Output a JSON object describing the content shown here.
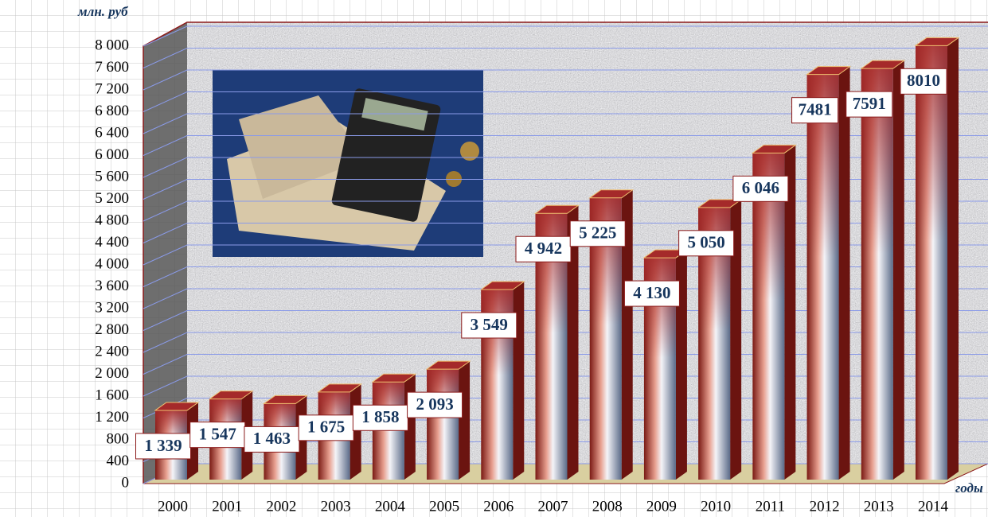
{
  "chart_data": {
    "type": "bar3d",
    "y_axis_label": "млн. руб",
    "x_axis_label": "годы",
    "categories": [
      "2000",
      "2001",
      "2002",
      "2003",
      "2004",
      "2005",
      "2006",
      "2007",
      "2008",
      "2009",
      "2010",
      "2011",
      "2012",
      "2013",
      "2014"
    ],
    "values": [
      1339,
      1547,
      1463,
      1675,
      1858,
      2093,
      3549,
      4942,
      5225,
      4130,
      5050,
      6046,
      7481,
      7591,
      8010
    ],
    "value_labels": [
      "1 339",
      "1 547",
      "1 463",
      "1 675",
      "1 858",
      "2 093",
      "3 549",
      "4 942",
      "5 225",
      "4 130",
      "5 050",
      "6 046",
      "7481",
      "7591",
      "8010"
    ],
    "color": "#a52a2a",
    "ylim": [
      0,
      8000
    ],
    "yticks": [
      0,
      400,
      800,
      {
        "value": 1200,
        "label": "1 200"
      },
      {
        "value": 1600,
        "label": "1 600"
      },
      {
        "value": 2000,
        "label": "2 000"
      },
      {
        "value": 2400,
        "label": "2 400"
      },
      {
        "value": 2800,
        "label": "2 800"
      },
      {
        "value": 3200,
        "label": "3 200"
      },
      {
        "value": 3600,
        "label": "3 600"
      },
      {
        "value": 4000,
        "label": "4 000"
      },
      {
        "value": 4400,
        "label": "4 400"
      },
      {
        "value": 4800,
        "label": "4 800"
      },
      {
        "value": 5200,
        "label": "5 200"
      },
      {
        "value": 5600,
        "label": "5 600"
      },
      {
        "value": 6000,
        "label": "6 000"
      },
      {
        "value": 6400,
        "label": "6 400"
      },
      {
        "value": 6800,
        "label": "6 800"
      },
      {
        "value": 7200,
        "label": "7 200"
      },
      {
        "value": 7600,
        "label": "7 600"
      },
      {
        "value": 8000,
        "label": "8 000"
      }
    ],
    "grid": true
  }
}
